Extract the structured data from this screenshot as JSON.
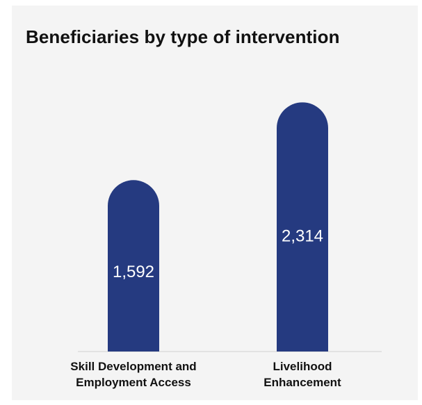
{
  "chart_data": {
    "type": "bar",
    "title": "Beneficiaries by type of intervention",
    "categories": [
      "Skill Development and\nEmployment Access",
      "Livelihood\nEnhancement"
    ],
    "values": [
      1592,
      2314
    ],
    "value_labels": [
      "1,592",
      "2,314"
    ],
    "ylim": [
      0,
      2600
    ],
    "grid": false,
    "legend": "none",
    "bar_color": "#253a80",
    "label_color": "#ffffff"
  }
}
